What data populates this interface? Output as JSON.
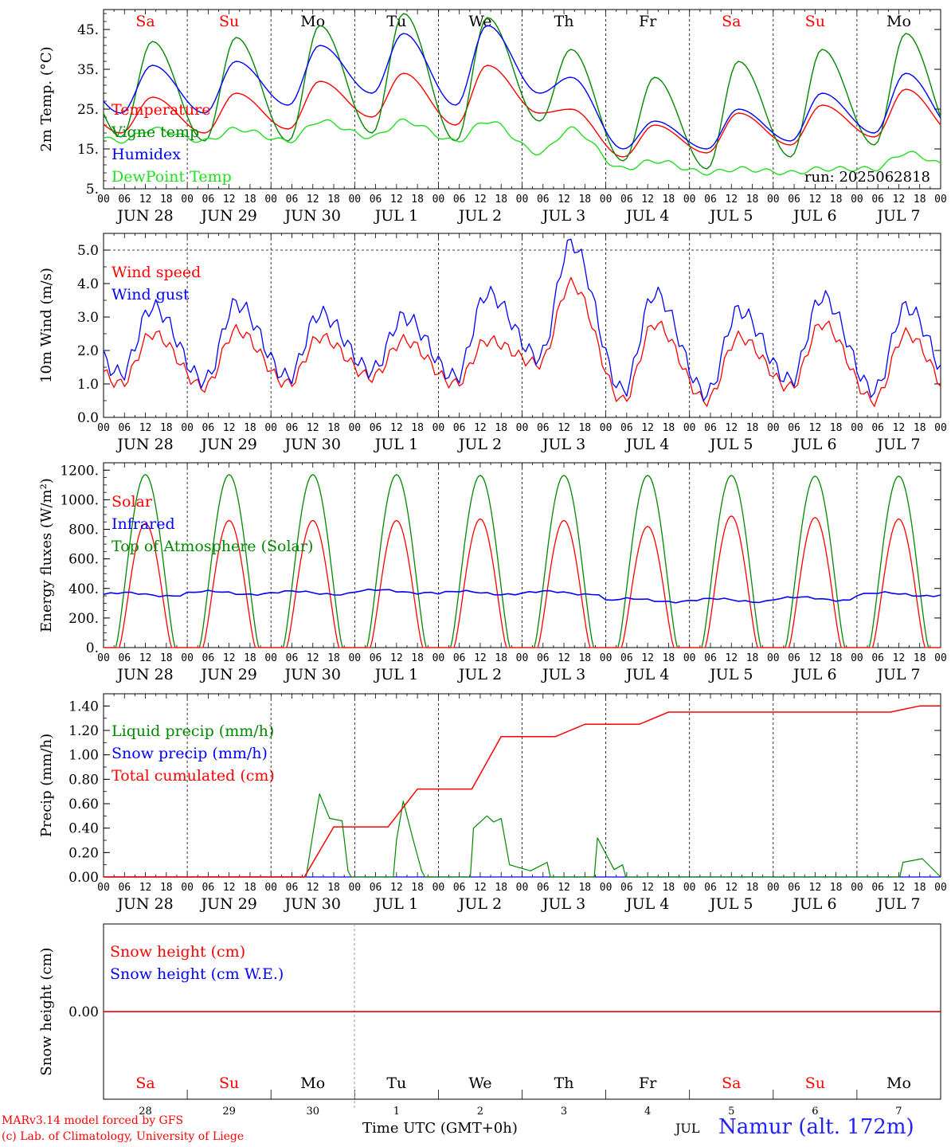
{
  "chart_data": [
    {
      "type": "line",
      "ylabel": "2m Temp. (°C)",
      "ylim": [
        5,
        50
      ],
      "yticks": [
        "5.",
        "15.",
        "25.",
        "35.",
        "45."
      ],
      "run_label": "run: 2025062818",
      "day_labels": [
        "Sa",
        "Su",
        "Mo",
        "Tu",
        "We",
        "Th",
        "Fr",
        "Sa",
        "Su",
        "Mo"
      ],
      "date_labels": [
        "JUN 28",
        "JUN 29",
        "JUN 30",
        "JUL  1",
        "JUL  2",
        "JUL  3",
        "JUL  4",
        "JUL  5",
        "JUL  6",
        "JUL  7"
      ],
      "hour_labels": [
        "00",
        "06",
        "12",
        "18"
      ],
      "series": [
        {
          "name": "Temperature",
          "color": "#ff0000",
          "daily_min": [
            19,
            19,
            20,
            23,
            21,
            24,
            13,
            14,
            16,
            18
          ],
          "daily_max": [
            28,
            29,
            32,
            34,
            36,
            25,
            21,
            24,
            26,
            30
          ]
        },
        {
          "name": "Vigne temp",
          "color": "#008800",
          "daily_min": [
            18,
            17,
            17,
            19,
            17,
            22,
            12,
            10,
            13,
            16
          ],
          "daily_max": [
            42,
            43,
            46,
            49,
            48,
            40,
            33,
            37,
            40,
            44
          ]
        },
        {
          "name": "Humidex",
          "color": "#0000ff",
          "daily_min": [
            24,
            24,
            26,
            29,
            26,
            29,
            15,
            15,
            17,
            19
          ],
          "daily_max": [
            36,
            37,
            41,
            44,
            46,
            33,
            22,
            25,
            29,
            34
          ]
        },
        {
          "name": "DewPoint Temp",
          "color": "#22dd22",
          "daily_min": [
            17,
            17,
            17,
            18,
            17,
            14,
            10,
            9,
            9,
            10
          ],
          "daily_max": [
            20,
            20,
            22,
            22,
            22,
            20,
            12,
            10,
            10,
            14
          ]
        }
      ]
    },
    {
      "type": "line",
      "ylabel": "10m Wind (m/s)",
      "ylim": [
        0,
        5.5
      ],
      "yticks": [
        "0.0",
        "1.0",
        "2.0",
        "3.0",
        "4.0",
        "5.0"
      ],
      "date_labels": [
        "JUN 28",
        "JUN 29",
        "JUN 30",
        "JUL  1",
        "JUL  2",
        "JUL  3",
        "JUL  4",
        "JUL  5",
        "JUL  6",
        "JUL  7"
      ],
      "hour_labels": [
        "00",
        "06",
        "12",
        "18"
      ],
      "series": [
        {
          "name": "Wind speed",
          "color": "#ff0000",
          "daily_min": [
            1.0,
            0.9,
            1.0,
            1.2,
            1.0,
            1.6,
            0.5,
            0.5,
            0.9,
            0.5
          ],
          "daily_max": [
            2.5,
            2.6,
            2.4,
            2.3,
            2.3,
            4.0,
            2.8,
            2.4,
            2.8,
            2.5
          ]
        },
        {
          "name": "Wind gust",
          "color": "#0000ff",
          "daily_min": [
            1.3,
            1.1,
            1.2,
            1.4,
            1.2,
            1.8,
            0.8,
            0.7,
            1.1,
            0.8
          ],
          "daily_max": [
            3.3,
            3.4,
            3.1,
            3.0,
            3.7,
            5.2,
            3.7,
            3.2,
            3.6,
            3.3
          ]
        }
      ]
    },
    {
      "type": "line",
      "ylabel": "Energy fluxes (W/m²)",
      "ylim": [
        0,
        1250
      ],
      "yticks": [
        "0.",
        "200.",
        "400.",
        "600.",
        "800.",
        "1000.",
        "1200."
      ],
      "date_labels": [
        "JUN 28",
        "JUN 29",
        "JUN 30",
        "JUL  1",
        "JUL  2",
        "JUL  3",
        "JUL  4",
        "JUL  5",
        "JUL  6",
        "JUL  7"
      ],
      "hour_labels": [
        "00",
        "06",
        "12",
        "18"
      ],
      "series": [
        {
          "name": "Solar",
          "color": "#ff0000",
          "daily_peak": [
            840,
            860,
            860,
            860,
            870,
            860,
            820,
            890,
            880,
            870
          ]
        },
        {
          "name": "Infrared",
          "color": "#0000ff",
          "daily_level": [
            360,
            370,
            370,
            380,
            370,
            370,
            320,
            320,
            330,
            360
          ]
        },
        {
          "name": "Top of Atmosphere (Solar)",
          "color": "#008800",
          "daily_peak": [
            1170,
            1170,
            1170,
            1170,
            1165,
            1165,
            1165,
            1165,
            1160,
            1160
          ]
        }
      ]
    },
    {
      "type": "line",
      "ylabel": "Precip (mm/h)",
      "ylim": [
        0,
        1.5
      ],
      "yticks": [
        "0.00",
        "0.20",
        "0.40",
        "0.60",
        "0.80",
        "1.00",
        "1.20",
        "1.40"
      ],
      "date_labels": [
        "JUN 28",
        "JUN 29",
        "JUN 30",
        "JUL  1",
        "JUL  2",
        "JUL  3",
        "JUL  4",
        "JUL  5",
        "JUL  6",
        "JUL  7"
      ],
      "hour_labels": [
        "00",
        "06",
        "12",
        "18"
      ],
      "series": [
        {
          "name": "Liquid precip (mm/h)",
          "color": "#008800"
        },
        {
          "name": "Snow precip (mm/h)",
          "color": "#0000ff"
        },
        {
          "name": "Total cumulated (cm)",
          "color": "#ff0000",
          "cumulative_end_of_day": [
            0,
            0,
            0.41,
            0.72,
            1.15,
            1.25,
            1.35,
            1.35,
            1.35,
            1.4
          ]
        }
      ],
      "liquid_events": [
        [
          2.42,
          0
        ],
        [
          2.5,
          0.35
        ],
        [
          2.58,
          0.68
        ],
        [
          2.7,
          0.48
        ],
        [
          2.85,
          0.46
        ],
        [
          2.92,
          0.05
        ],
        [
          3.5,
          0.3
        ],
        [
          3.58,
          0.62
        ],
        [
          3.7,
          0.3
        ],
        [
          3.8,
          0.05
        ],
        [
          4.42,
          0.4
        ],
        [
          4.58,
          0.5
        ],
        [
          4.66,
          0.45
        ],
        [
          4.75,
          0.48
        ],
        [
          4.85,
          0.1
        ],
        [
          5.1,
          0.05
        ],
        [
          5.3,
          0.12
        ],
        [
          5.9,
          0.32
        ],
        [
          6.1,
          0.06
        ],
        [
          6.2,
          0.1
        ],
        [
          9.55,
          0.12
        ],
        [
          9.78,
          0.15
        ]
      ]
    },
    {
      "type": "line",
      "ylabel": "Snow height (cm)",
      "yticks": [
        "0.00"
      ],
      "day_labels": [
        "Sa",
        "Su",
        "Mo",
        "Tu",
        "We",
        "Th",
        "Fr",
        "Sa",
        "Su",
        "Mo"
      ],
      "date_numbers": [
        "28",
        "29",
        "30",
        "1",
        "2",
        "3",
        "4",
        "5",
        "6",
        "7"
      ],
      "series": [
        {
          "name": "Snow height (cm)",
          "color": "#ff0000",
          "values": [
            0
          ]
        },
        {
          "name": "Snow height (cm W.E.)",
          "color": "#0000ff",
          "values": [
            0
          ]
        }
      ]
    }
  ],
  "footer": {
    "credit_line1": "MARv3.14 model forced by GFS",
    "credit_line2": "(c) Lab. of Climatology, University of Liege",
    "xlabel": "Time UTC (GMT+0h)",
    "month": "JUL",
    "station": "Namur (alt. 172m)"
  },
  "colors": {
    "weekend": "#ff0000",
    "weekday": "#000000",
    "station": "#2222ff"
  }
}
